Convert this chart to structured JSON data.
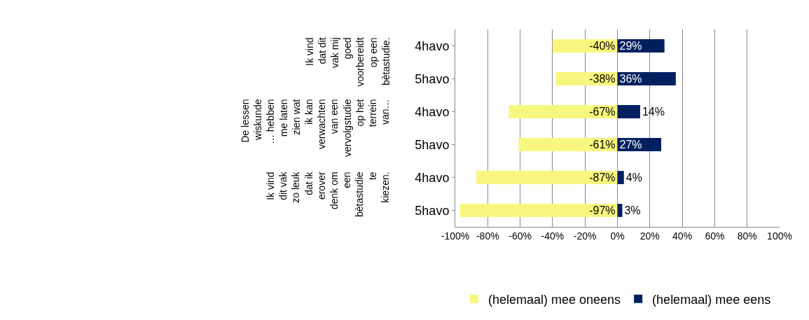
{
  "chart_data": {
    "type": "bar",
    "orientation": "horizontal",
    "stacked": true,
    "categories": [
      "4havo",
      "5havo",
      "4havo",
      "5havo",
      "4havo",
      "5havo"
    ],
    "series": [
      {
        "name": "(helemaal) mee oneens",
        "color": "#f7f77f",
        "values": [
          -40,
          -38,
          -67,
          -61,
          -87,
          -97
        ],
        "value_labels": [
          "-40%",
          "-38%",
          "-67%",
          "-61%",
          "-87%",
          "-97%"
        ]
      },
      {
        "name": "(helemaal) mee eens",
        "color": "#002060",
        "values": [
          29,
          36,
          14,
          27,
          4,
          3
        ],
        "value_labels": [
          "29%",
          "36%",
          "14%",
          "27%",
          "4%",
          "3%"
        ]
      }
    ],
    "annotations": [
      "Ik vind dat dit vak mij goed voorbereidt op een bètastudie.",
      "De lessen wiskunde … hebben me laten zien wat ik kan verwachten van een vervolgstudie op het terrein van…",
      "Ik vind dit vak zo leuk dat ik erover denk om een bètastudie te kiezen."
    ],
    "xlim": [
      -100,
      100
    ],
    "xticks": [
      {
        "value": -100,
        "label": "-100%"
      },
      {
        "value": -80,
        "label": "-80%"
      },
      {
        "value": -60,
        "label": "-60%"
      },
      {
        "value": -40,
        "label": "-40%"
      },
      {
        "value": -20,
        "label": "-20%"
      },
      {
        "value": 0,
        "label": "0%"
      },
      {
        "value": 20,
        "label": "20%"
      },
      {
        "value": 40,
        "label": "40%"
      },
      {
        "value": 60,
        "label": "60%"
      },
      {
        "value": 80,
        "label": "80%"
      },
      {
        "value": 100,
        "label": "100%"
      }
    ],
    "grid": "x",
    "legend": "bottom"
  }
}
